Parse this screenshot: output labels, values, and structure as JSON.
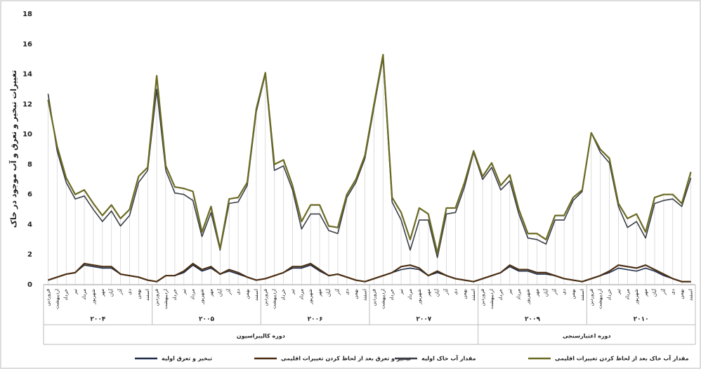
{
  "chart_data": {
    "type": "line",
    "y_label": "تغییرات تبخیر و تعرق و آب موجود در خاک",
    "categories": [
      "فروردین",
      "اردیبهشت",
      "خرداد",
      "تیر",
      "مرداد",
      "شهریور",
      "مهر",
      "آبان",
      "آذر",
      "دی",
      "بهمن",
      "اسفند",
      "فروردین",
      "اردیبهشت",
      "خرداد",
      "تیر",
      "مرداد",
      "شهریور",
      "مهر",
      "آبان",
      "آذر",
      "دی",
      "بهمن",
      "اسفند",
      "فروردین",
      "اردیبهشت",
      "خرداد",
      "تیر",
      "مرداد",
      "شهریور",
      "مهر",
      "آبان",
      "آذر",
      "دی",
      "بهمن",
      "اسفند",
      "فروردین",
      "اردیبهشت",
      "خرداد",
      "تیر",
      "مرداد",
      "شهریور",
      "مهر",
      "آبان",
      "آذر",
      "دی",
      "بهمن",
      "اسفند",
      "فروردین",
      "اردیبهشت",
      "خرداد",
      "تیر",
      "مرداد",
      "شهریور",
      "مهر",
      "آبان",
      "آذر",
      "دی",
      "بهمن",
      "اسفند",
      "فروردین",
      "اردیبهشت",
      "خرداد",
      "تیر",
      "مرداد",
      "شهریور",
      "مهر",
      "آبان",
      "آذر",
      "دی",
      "بهمن",
      "اسفند"
    ],
    "years": [
      "۲۰۰۴",
      "۲۰۰۵",
      "۲۰۰۶",
      "۲۰۰۷",
      "۲۰۰۹",
      "۲۰۱۰"
    ],
    "periods": [
      "دوره کالیبراسیون",
      "دوره اعتبارسنجی"
    ],
    "ylim": [
      0,
      18
    ],
    "yticks": [
      0,
      2,
      4,
      6,
      8,
      10,
      12,
      14,
      16,
      18
    ],
    "series": [
      {
        "name": "تبخیر و تعرق اولیه",
        "color": "#1f2d4a",
        "values": [
          0.3,
          0.5,
          0.7,
          0.8,
          1.3,
          1.2,
          1.1,
          1.1,
          0.7,
          0.6,
          0.5,
          0.3,
          0.2,
          0.6,
          0.6,
          0.8,
          1.3,
          0.9,
          1.1,
          0.7,
          0.9,
          0.7,
          0.5,
          0.3,
          0.4,
          0.6,
          0.8,
          1.1,
          1.1,
          1.3,
          0.9,
          0.6,
          0.7,
          0.5,
          0.3,
          0.2,
          0.4,
          0.6,
          0.8,
          1.0,
          1.1,
          1.0,
          0.6,
          0.8,
          0.6,
          0.4,
          0.3,
          0.2,
          0.4,
          0.6,
          0.8,
          1.2,
          0.9,
          0.9,
          0.7,
          0.7,
          0.6,
          0.4,
          0.3,
          0.2,
          0.4,
          0.6,
          0.8,
          1.1,
          1.0,
          0.9,
          1.1,
          0.9,
          0.6,
          0.4,
          0.2,
          0.2
        ]
      },
      {
        "name": "تبخیر و تعرق بعد از لحاظ کردن تغییرات اقلیمی",
        "color": "#4a2e12",
        "values": [
          0.3,
          0.5,
          0.7,
          0.8,
          1.4,
          1.3,
          1.2,
          1.2,
          0.7,
          0.6,
          0.5,
          0.3,
          0.2,
          0.6,
          0.6,
          0.9,
          1.4,
          1.0,
          1.2,
          0.7,
          1.0,
          0.8,
          0.5,
          0.3,
          0.4,
          0.6,
          0.8,
          1.2,
          1.2,
          1.4,
          1.0,
          0.6,
          0.7,
          0.5,
          0.3,
          0.2,
          0.4,
          0.6,
          0.8,
          1.2,
          1.3,
          1.1,
          0.6,
          0.9,
          0.6,
          0.4,
          0.3,
          0.2,
          0.4,
          0.6,
          0.8,
          1.3,
          1.0,
          1.0,
          0.8,
          0.8,
          0.6,
          0.4,
          0.3,
          0.2,
          0.4,
          0.6,
          0.9,
          1.3,
          1.2,
          1.1,
          1.3,
          1.0,
          0.7,
          0.4,
          0.2,
          0.2
        ]
      },
      {
        "name": "مقدار آب خاک اولیه",
        "color": "#3a3f47",
        "values": [
          12.7,
          8.9,
          6.8,
          5.7,
          5.9,
          5.0,
          4.2,
          4.9,
          3.9,
          4.6,
          6.8,
          7.6,
          13.0,
          7.6,
          6.1,
          6.0,
          5.6,
          3.2,
          4.8,
          2.3,
          5.4,
          5.5,
          6.6,
          11.5,
          14.0,
          7.6,
          7.9,
          6.3,
          3.7,
          4.7,
          4.7,
          3.6,
          3.4,
          5.8,
          6.8,
          8.4,
          11.8,
          15.1,
          5.5,
          4.3,
          2.3,
          4.3,
          4.3,
          1.8,
          4.7,
          4.8,
          6.5,
          8.8,
          7.0,
          7.8,
          6.3,
          6.9,
          4.7,
          3.1,
          3.0,
          2.7,
          4.3,
          4.3,
          5.6,
          6.2,
          10.1,
          8.8,
          8.1,
          5.2,
          3.8,
          4.2,
          3.1,
          5.4,
          5.6,
          5.7,
          5.2,
          7.1
        ]
      },
      {
        "name": "مقدار آب خاک بعد از لحاظ کردن تغییرات اقلیمی",
        "color": "#6b6a22",
        "values": [
          12.3,
          9.2,
          7.1,
          6.0,
          6.3,
          5.4,
          4.6,
          5.3,
          4.4,
          5.0,
          7.2,
          7.8,
          13.9,
          7.9,
          6.5,
          6.4,
          6.2,
          3.5,
          5.2,
          2.4,
          5.7,
          5.8,
          6.8,
          11.7,
          14.1,
          8.0,
          8.3,
          6.6,
          4.2,
          5.3,
          5.3,
          3.9,
          3.8,
          6.0,
          7.0,
          8.6,
          12.0,
          15.3,
          5.8,
          4.8,
          3.0,
          5.1,
          4.7,
          2.1,
          5.1,
          5.1,
          6.8,
          8.9,
          7.2,
          8.1,
          6.6,
          7.3,
          5.0,
          3.4,
          3.4,
          3.0,
          4.6,
          4.6,
          5.8,
          6.3,
          10.1,
          9.0,
          8.4,
          5.4,
          4.4,
          4.7,
          3.5,
          5.8,
          6.0,
          6.0,
          5.4,
          7.5
        ]
      }
    ]
  }
}
